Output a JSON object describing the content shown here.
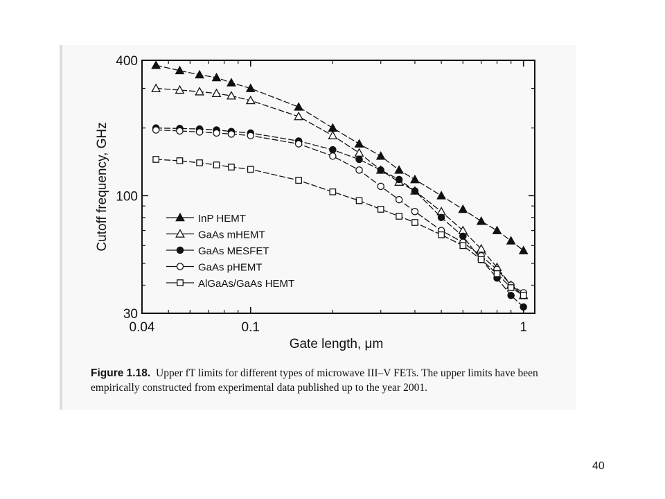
{
  "chart_data": {
    "type": "line",
    "xlabel": "Gate length, μm",
    "ylabel": "Cutoff frequency, GHz",
    "xscale": "log",
    "yscale": "log",
    "xlim": [
      0.04,
      1.1
    ],
    "ylim": [
      30,
      400
    ],
    "xticks": [
      {
        "value": 0.04,
        "label": "0.04"
      },
      {
        "value": 0.1,
        "label": "0.1"
      },
      {
        "value": 1,
        "label": "1"
      }
    ],
    "yticks": [
      {
        "value": 30,
        "label": "30"
      },
      {
        "value": 100,
        "label": "100"
      },
      {
        "value": 400,
        "label": "400"
      }
    ],
    "grid": false,
    "legend_position": "lower-left",
    "series": [
      {
        "name": "InP HEMT",
        "marker": "triangle-filled",
        "x": [
          0.045,
          0.055,
          0.065,
          0.075,
          0.085,
          0.1,
          0.15,
          0.2,
          0.25,
          0.3,
          0.35,
          0.4,
          0.5,
          0.6,
          0.7,
          0.8,
          0.9,
          1.0
        ],
        "y": [
          380,
          360,
          345,
          335,
          318,
          300,
          248,
          200,
          170,
          150,
          130,
          118,
          100,
          87,
          77,
          70,
          63,
          57
        ]
      },
      {
        "name": "GaAs mHEMT",
        "marker": "triangle-open",
        "x": [
          0.045,
          0.055,
          0.065,
          0.075,
          0.085,
          0.1,
          0.15,
          0.2,
          0.25,
          0.3,
          0.35,
          0.4,
          0.5,
          0.6,
          0.7,
          0.8,
          0.9,
          1.0
        ],
        "y": [
          300,
          295,
          290,
          285,
          278,
          265,
          225,
          185,
          155,
          130,
          115,
          105,
          85,
          70,
          58,
          48,
          40,
          36
        ]
      },
      {
        "name": "GaAs MESFET",
        "marker": "circle-filled",
        "x": [
          0.045,
          0.055,
          0.065,
          0.075,
          0.085,
          0.1,
          0.15,
          0.2,
          0.25,
          0.3,
          0.35,
          0.4,
          0.5,
          0.6,
          0.7,
          0.8,
          0.9,
          1.0
        ],
        "y": [
          200,
          199,
          198,
          196,
          193,
          190,
          175,
          160,
          145,
          130,
          118,
          105,
          80,
          66,
          52,
          43,
          36,
          32
        ]
      },
      {
        "name": "GaAs pHEMT",
        "marker": "circle-open",
        "x": [
          0.045,
          0.055,
          0.065,
          0.075,
          0.085,
          0.1,
          0.15,
          0.2,
          0.25,
          0.3,
          0.35,
          0.4,
          0.5,
          0.6,
          0.7,
          0.8,
          0.9,
          1.0
        ],
        "y": [
          196,
          194,
          192,
          190,
          188,
          185,
          170,
          150,
          130,
          110,
          96,
          85,
          70,
          62,
          54,
          47,
          40,
          37
        ]
      },
      {
        "name": "AlGaAs/GaAs HEMT",
        "marker": "square-open",
        "x": [
          0.045,
          0.055,
          0.065,
          0.075,
          0.085,
          0.1,
          0.15,
          0.2,
          0.25,
          0.3,
          0.35,
          0.4,
          0.5,
          0.6,
          0.7,
          0.8,
          0.9,
          1.0
        ],
        "y": [
          145,
          143,
          140,
          137,
          134,
          131,
          117,
          104,
          95,
          87,
          81,
          76,
          67,
          60,
          52,
          45,
          39,
          36
        ]
      }
    ]
  },
  "caption": {
    "label": "Figure 1.18.",
    "text": "Upper fT limits for different types of microwave III–V FETs. The upper limits have been empirically constructed from experimental data published up to the year 2001."
  },
  "slide": {
    "number": "40"
  }
}
